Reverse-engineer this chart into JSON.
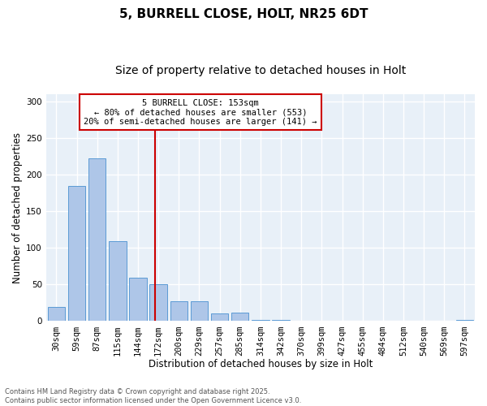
{
  "title_line1": "5, BURRELL CLOSE, HOLT, NR25 6DT",
  "title_line2": "Size of property relative to detached houses in Holt",
  "xlabel": "Distribution of detached houses by size in Holt",
  "ylabel": "Number of detached properties",
  "bar_values": [
    19,
    185,
    222,
    109,
    59,
    50,
    27,
    27,
    10,
    12,
    2,
    2,
    0,
    0,
    0,
    0,
    0,
    0,
    0,
    0,
    2
  ],
  "bar_labels": [
    "30sqm",
    "59sqm",
    "87sqm",
    "115sqm",
    "144sqm",
    "172sqm",
    "200sqm",
    "229sqm",
    "257sqm",
    "285sqm",
    "314sqm",
    "342sqm",
    "370sqm",
    "399sqm",
    "427sqm",
    "455sqm",
    "484sqm",
    "512sqm",
    "540sqm",
    "569sqm",
    "597sqm"
  ],
  "bar_color": "#aec6e8",
  "bar_edge_color": "#5b9bd5",
  "vline_x": 4.82,
  "vline_color": "#cc0000",
  "annotation_line1": "5 BURRELL CLOSE: 153sqm",
  "annotation_line2": "← 80% of detached houses are smaller (553)",
  "annotation_line3": "20% of semi-detached houses are larger (141) →",
  "annotation_box_color": "#cc0000",
  "annotation_facecolor": "white",
  "ylim": [
    0,
    310
  ],
  "yticks": [
    0,
    50,
    100,
    150,
    200,
    250,
    300
  ],
  "bg_color": "#e8f0f8",
  "footer_line1": "Contains HM Land Registry data © Crown copyright and database right 2025.",
  "footer_line2": "Contains public sector information licensed under the Open Government Licence v3.0.",
  "footer_color": "#555555",
  "grid_color": "white",
  "title_fontsize": 11,
  "subtitle_fontsize": 10,
  "axis_label_fontsize": 8.5,
  "tick_fontsize": 7.5,
  "annotation_fontsize": 7.5,
  "footer_fontsize": 6.0
}
